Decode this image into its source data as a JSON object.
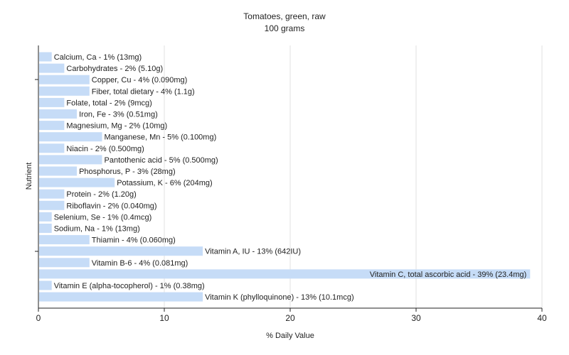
{
  "chart_data": {
    "type": "bar",
    "orientation": "horizontal",
    "title": "Tomatoes, green, raw",
    "subtitle": "100 grams",
    "xlabel": "% Daily Value",
    "ylabel": "Nutrient",
    "xlim": [
      0,
      40
    ],
    "xticks": [
      0,
      10,
      20,
      30,
      40
    ],
    "grid": "vertical",
    "bar_color": "#c6dcf7",
    "categories": [
      "Calcium, Ca",
      "Carbohydrates",
      "Copper, Cu",
      "Fiber, total dietary",
      "Folate, total",
      "Iron, Fe",
      "Magnesium, Mg",
      "Manganese, Mn",
      "Niacin",
      "Pantothenic acid",
      "Phosphorus, P",
      "Potassium, K",
      "Protein",
      "Riboflavin",
      "Selenium, Se",
      "Sodium, Na",
      "Thiamin",
      "Vitamin A, IU",
      "Vitamin B-6",
      "Vitamin C, total ascorbic acid",
      "Vitamin E (alpha-tocopherol)",
      "Vitamin K (phylloquinone)"
    ],
    "values": [
      1,
      2,
      4,
      4,
      2,
      3,
      2,
      5,
      2,
      5,
      3,
      6,
      2,
      2,
      1,
      1,
      4,
      13,
      4,
      39,
      1,
      13
    ],
    "labels": [
      "Calcium, Ca - 1% (13mg)",
      "Carbohydrates - 2% (5.10g)",
      "Copper, Cu - 4% (0.090mg)",
      "Fiber, total dietary - 4% (1.1g)",
      "Folate, total - 2% (9mcg)",
      "Iron, Fe - 3% (0.51mg)",
      "Magnesium, Mg - 2% (10mg)",
      "Manganese, Mn - 5% (0.100mg)",
      "Niacin - 2% (0.500mg)",
      "Pantothenic acid - 5% (0.500mg)",
      "Phosphorus, P - 3% (28mg)",
      "Potassium, K - 6% (204mg)",
      "Protein - 2% (1.20g)",
      "Riboflavin - 2% (0.040mg)",
      "Selenium, Se - 1% (0.4mcg)",
      "Sodium, Na - 1% (13mg)",
      "Thiamin - 4% (0.060mg)",
      "Vitamin A, IU - 13% (642IU)",
      "Vitamin B-6 - 4% (0.081mg)",
      "Vitamin C, total ascorbic acid - 39% (23.4mg)",
      "Vitamin E (alpha-tocopherol) - 1% (0.38mg)",
      "Vitamin K (phylloquinone) - 13% (10.1mcg)"
    ]
  }
}
